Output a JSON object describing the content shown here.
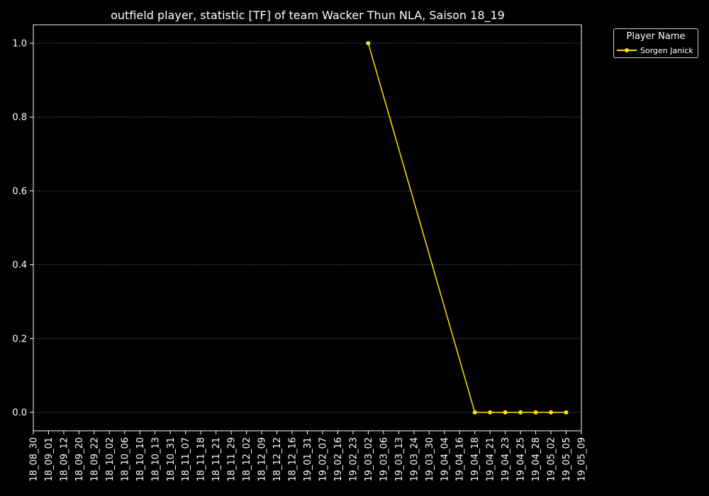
{
  "chart_data": {
    "type": "line",
    "title": "outfield player, statistic [TF] of team Wacker Thun NLA, Saison 18_19",
    "xlabel": "",
    "ylabel": "",
    "categories": [
      "18_08_30",
      "18_09_01",
      "18_09_12",
      "18_09_20",
      "18_09_22",
      "18_10_02",
      "18_10_06",
      "18_10_10",
      "18_10_13",
      "18_10_31",
      "18_11_07",
      "18_11_18",
      "18_11_21",
      "18_11_29",
      "18_12_02",
      "18_12_09",
      "18_12_12",
      "18_12_16",
      "19_01_31",
      "19_02_07",
      "19_02_16",
      "19_02_23",
      "19_03_02",
      "19_03_06",
      "19_03_13",
      "19_03_24",
      "19_03_30",
      "19_04_04",
      "19_04_16",
      "19_04_18",
      "19_04_21",
      "19_04_23",
      "19_04_25",
      "19_04_28",
      "19_05_02",
      "19_05_05",
      "19_05_09"
    ],
    "yticks": [
      "0.0",
      "0.2",
      "0.4",
      "0.6",
      "0.8",
      "1.0"
    ],
    "ylim": [
      -0.05,
      1.05
    ],
    "grid": true,
    "legend_title": "Player Name",
    "legend_position": "outside-top-right",
    "series": [
      {
        "name": "Sorgen Janick",
        "color": "#ffe600",
        "points": [
          {
            "x": "19_03_02",
            "y": 1
          },
          {
            "x": "19_04_18",
            "y": 0
          },
          {
            "x": "19_04_21",
            "y": 0
          },
          {
            "x": "19_04_23",
            "y": 0
          },
          {
            "x": "19_04_25",
            "y": 0
          },
          {
            "x": "19_04_28",
            "y": 0
          },
          {
            "x": "19_05_02",
            "y": 0
          },
          {
            "x": "19_05_05",
            "y": 0
          }
        ]
      }
    ]
  }
}
